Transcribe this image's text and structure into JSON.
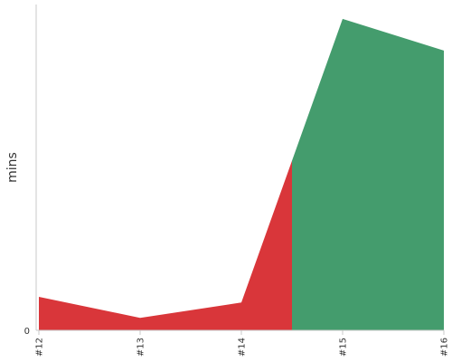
{
  "chart_data": {
    "type": "area",
    "title": "",
    "xlabel": "",
    "ylabel": "mins",
    "categories": [
      "#12",
      "#13",
      "#14",
      "#15",
      "#16"
    ],
    "x": [
      12,
      13,
      14,
      15,
      16
    ],
    "y": [
      3.5,
      1.3,
      2.9,
      32.5,
      29.2
    ],
    "threshold_x": 14.5,
    "series": [
      {
        "color": "#d9363a"
      },
      {
        "color": "#449c6d"
      }
    ],
    "yticks": [
      0
    ],
    "ylim": [
      0,
      34
    ],
    "xlim": [
      12,
      16
    ],
    "grid": false,
    "legend": "none"
  }
}
